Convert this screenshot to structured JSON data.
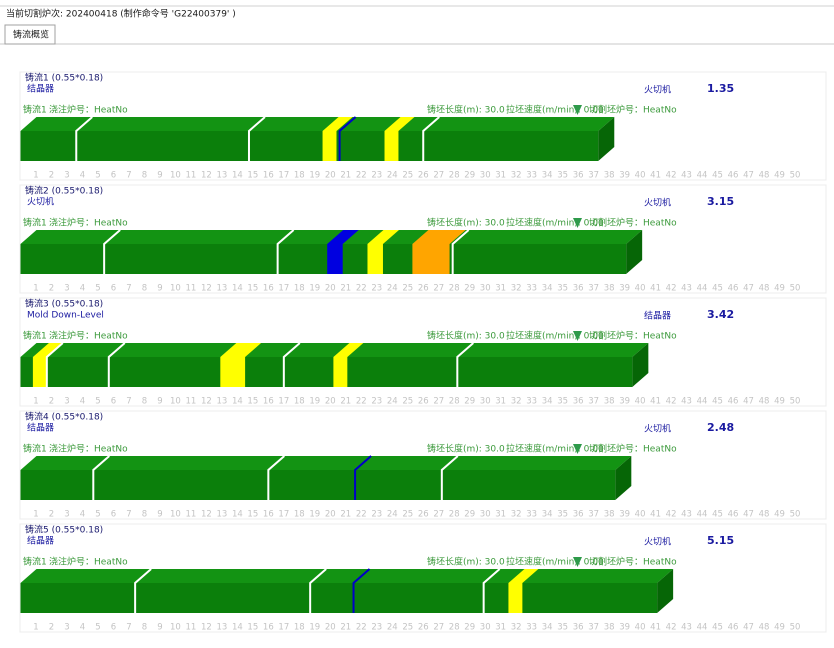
{
  "header": {
    "status": "当前切割炉次: 202400418 (制作命令号 'G22400379' )",
    "tab": "铸流概览"
  },
  "scale": [
    1,
    2,
    3,
    4,
    5,
    6,
    7,
    8,
    9,
    10,
    11,
    12,
    13,
    14,
    15,
    16,
    17,
    18,
    19,
    20,
    21,
    22,
    23,
    24,
    25,
    26,
    27,
    28,
    29,
    30,
    31,
    32,
    33,
    34,
    35,
    36,
    37,
    38,
    39,
    40,
    41,
    42,
    43,
    44,
    45,
    46,
    47,
    48,
    49,
    50
  ],
  "strands": [
    {
      "title": "铸流1 (0.55*0.18)",
      "left_state": "结晶器",
      "right_state": "火切机",
      "value": "1.35",
      "info": [
        "铸流1",
        "浇注炉号：HeatNo",
        "铸坯长度(m): 30.0",
        "拉坯速度(m/min): 0.00",
        "切割坯炉号：HeatNo"
      ],
      "end": 37.3,
      "joints": [
        3.6,
        14.75,
        26
      ],
      "blocks": [
        {
          "start": 19.5,
          "end": 20.4,
          "color": "#ffff00"
        },
        {
          "start": 23.5,
          "end": 24.4,
          "color": "#ffff00"
        }
      ],
      "lines": [
        {
          "at": 20.6,
          "color": "#0000c8"
        }
      ]
    },
    {
      "title": "铸流2 (0.55*0.18)",
      "left_state": "火切机",
      "right_state": "火切机",
      "value": "3.15",
      "info": [
        "铸流1",
        "浇注炉号：HeatNo",
        "铸坯长度(m): 30.0",
        "拉坯速度(m/min): 0.00",
        "切割坯炉号：HeatNo"
      ],
      "end": 39.1,
      "joints": [
        5.4,
        16.6,
        27.9
      ],
      "blocks": [
        {
          "start": 19.8,
          "end": 20.8,
          "color": "#0000e0"
        },
        {
          "start": 22.4,
          "end": 23.4,
          "color": "#ffff00"
        },
        {
          "start": 25.3,
          "end": 27.7,
          "color": "#ffa500"
        }
      ],
      "lines": []
    },
    {
      "title": "铸流3 (0.55*0.18)",
      "left_state": "Mold Down-Level",
      "right_state": "结晶器",
      "value": "3.42",
      "info": [
        "铸流1",
        "浇注炉号：HeatNo",
        "铸坯长度(m): 30.0",
        "拉坯速度(m/min): 0.00",
        "切割坯炉号：HeatNo"
      ],
      "end": 39.5,
      "joints": [
        1.7,
        5.7,
        17.0,
        28.2
      ],
      "blocks": [
        {
          "start": 0.8,
          "end": 1.7,
          "color": "#ffff00"
        },
        {
          "start": 12.9,
          "end": 14.5,
          "color": "#ffff00"
        },
        {
          "start": 20.2,
          "end": 21.1,
          "color": "#ffff00"
        }
      ],
      "lines": []
    },
    {
      "title": "铸流4 (0.55*0.18)",
      "left_state": "结晶器",
      "right_state": "火切机",
      "value": "2.48",
      "info": [
        "铸流1",
        "浇注炉号：HeatNo",
        "铸坯长度(m): 30.0",
        "拉坯速度(m/min): 0.00",
        "切割坯炉号：HeatNo"
      ],
      "end": 38.4,
      "joints": [
        4.7,
        16,
        27.2
      ],
      "blocks": [],
      "lines": [
        {
          "at": 21.6,
          "color": "#0000c8"
        }
      ]
    },
    {
      "title": "铸流5 (0.55*0.18)",
      "left_state": "结晶器",
      "right_state": "火切机",
      "value": "5.15",
      "info": [
        "铸流1",
        "浇注炉号：HeatNo",
        "铸坯长度(m): 30.0",
        "拉坯速度(m/min): 0.00",
        "切割坯炉号：HeatNo"
      ],
      "end": 41.1,
      "joints": [
        7.4,
        18.7,
        29.9
      ],
      "blocks": [
        {
          "start": 31.5,
          "end": 32.4,
          "color": "#ffff00"
        }
      ],
      "lines": [
        {
          "at": 21.5,
          "color": "#0000c8"
        }
      ]
    }
  ]
}
